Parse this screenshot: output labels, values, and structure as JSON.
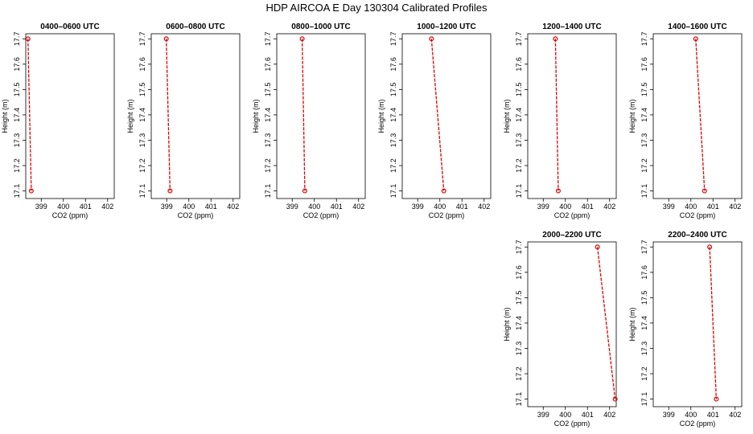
{
  "title": "HDP AIRCOA E  Day 130304  Calibrated Profiles",
  "colors": {
    "line": "#dd0000",
    "axis": "#000000"
  },
  "chart_data": [
    {
      "type": "line",
      "title": "0400–0600 UTC",
      "xlabel": "CO2 (ppm)",
      "ylabel": "Height (m)",
      "xlim": [
        398.3,
        402.3
      ],
      "ylim": [
        17.07,
        17.72
      ],
      "xticks": [
        "399",
        "400",
        "401",
        "402"
      ],
      "yticks": [
        "17.1",
        "17.2",
        "17.3",
        "17.4",
        "17.5",
        "17.6",
        "17.7"
      ],
      "series": [
        {
          "x": [
            398.4,
            398.55
          ],
          "y": [
            17.7,
            17.1
          ]
        }
      ]
    },
    {
      "type": "line",
      "title": "0600–0800 UTC",
      "xlabel": "CO2 (ppm)",
      "ylabel": "Height (m)",
      "xlim": [
        398.3,
        402.3
      ],
      "ylim": [
        17.07,
        17.72
      ],
      "xticks": [
        "399",
        "400",
        "401",
        "402"
      ],
      "yticks": [
        "17.1",
        "17.2",
        "17.3",
        "17.4",
        "17.5",
        "17.6",
        "17.7"
      ],
      "series": [
        {
          "x": [
            398.98,
            399.15
          ],
          "y": [
            17.7,
            17.1
          ]
        }
      ]
    },
    {
      "type": "line",
      "title": "0800–1000 UTC",
      "xlabel": "CO2 (ppm)",
      "ylabel": "Height (m)",
      "xlim": [
        398.3,
        402.3
      ],
      "ylim": [
        17.07,
        17.72
      ],
      "xticks": [
        "399",
        "400",
        "401",
        "402"
      ],
      "yticks": [
        "17.1",
        "17.2",
        "17.3",
        "17.4",
        "17.5",
        "17.6",
        "17.7"
      ],
      "series": [
        {
          "x": [
            399.45,
            399.57
          ],
          "y": [
            17.7,
            17.1
          ]
        }
      ]
    },
    {
      "type": "line",
      "title": "1000–1200 UTC",
      "xlabel": "CO2 (ppm)",
      "ylabel": "Height (m)",
      "xlim": [
        398.3,
        402.3
      ],
      "ylim": [
        17.07,
        17.72
      ],
      "xticks": [
        "399",
        "400",
        "401",
        "402"
      ],
      "yticks": [
        "17.1",
        "17.2",
        "17.3",
        "17.4",
        "17.5",
        "17.6",
        "17.7"
      ],
      "series": [
        {
          "x": [
            399.62,
            400.18
          ],
          "y": [
            17.7,
            17.1
          ]
        }
      ]
    },
    {
      "type": "line",
      "title": "1200–1400 UTC",
      "xlabel": "CO2 (ppm)",
      "ylabel": "Height (m)",
      "xlim": [
        398.3,
        402.3
      ],
      "ylim": [
        17.07,
        17.72
      ],
      "xticks": [
        "399",
        "400",
        "401",
        "402"
      ],
      "yticks": [
        "17.1",
        "17.2",
        "17.3",
        "17.4",
        "17.5",
        "17.6",
        "17.7"
      ],
      "series": [
        {
          "x": [
            399.55,
            399.68
          ],
          "y": [
            17.7,
            17.1
          ]
        }
      ]
    },
    {
      "type": "line",
      "title": "1400–1600 UTC",
      "xlabel": "CO2 (ppm)",
      "ylabel": "Height (m)",
      "xlim": [
        398.3,
        402.3
      ],
      "ylim": [
        17.07,
        17.72
      ],
      "xticks": [
        "399",
        "400",
        "401",
        "402"
      ],
      "yticks": [
        "17.1",
        "17.2",
        "17.3",
        "17.4",
        "17.5",
        "17.6",
        "17.7"
      ],
      "series": [
        {
          "x": [
            400.22,
            400.62
          ],
          "y": [
            17.7,
            17.1
          ]
        }
      ]
    },
    {
      "type": "line",
      "title": "2000–2200 UTC",
      "xlabel": "CO2 (ppm)",
      "ylabel": "Height (m)",
      "xlim": [
        398.3,
        402.3
      ],
      "ylim": [
        17.07,
        17.72
      ],
      "xticks": [
        "399",
        "400",
        "401",
        "402"
      ],
      "yticks": [
        "17.1",
        "17.2",
        "17.3",
        "17.4",
        "17.5",
        "17.6",
        "17.7"
      ],
      "series": [
        {
          "x": [
            401.45,
            402.25
          ],
          "y": [
            17.7,
            17.1
          ]
        }
      ]
    },
    {
      "type": "line",
      "title": "2200–2400 UTC",
      "xlabel": "CO2 (ppm)",
      "ylabel": "Height (m)",
      "xlim": [
        398.3,
        402.3
      ],
      "ylim": [
        17.07,
        17.72
      ],
      "xticks": [
        "399",
        "400",
        "401",
        "402"
      ],
      "yticks": [
        "17.1",
        "17.2",
        "17.3",
        "17.4",
        "17.5",
        "17.6",
        "17.7"
      ],
      "series": [
        {
          "x": [
            400.85,
            401.15
          ],
          "y": [
            17.7,
            17.1
          ]
        }
      ]
    }
  ]
}
